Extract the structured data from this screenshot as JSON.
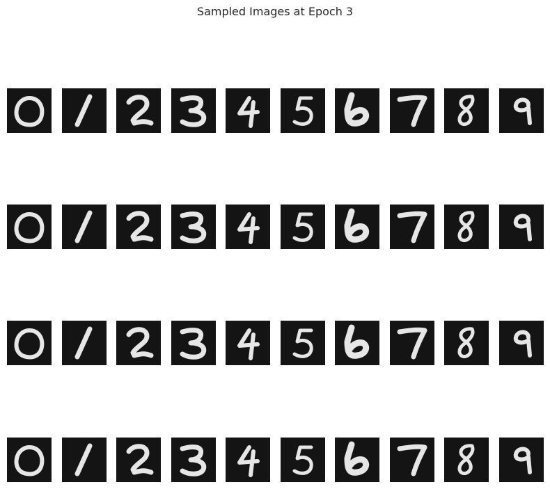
{
  "figure": {
    "title": "Sampled Images at Epoch 3",
    "rows": 4,
    "columns": 10,
    "image_content": "handwritten-digits",
    "digits": [
      "0",
      "1",
      "2",
      "3",
      "4",
      "5",
      "6",
      "7",
      "8",
      "9"
    ]
  },
  "colors": {
    "tile_background": "#141414",
    "digit_stroke": "#e6e6e6",
    "title_text": "#262626",
    "page_background": "#ffffff"
  }
}
